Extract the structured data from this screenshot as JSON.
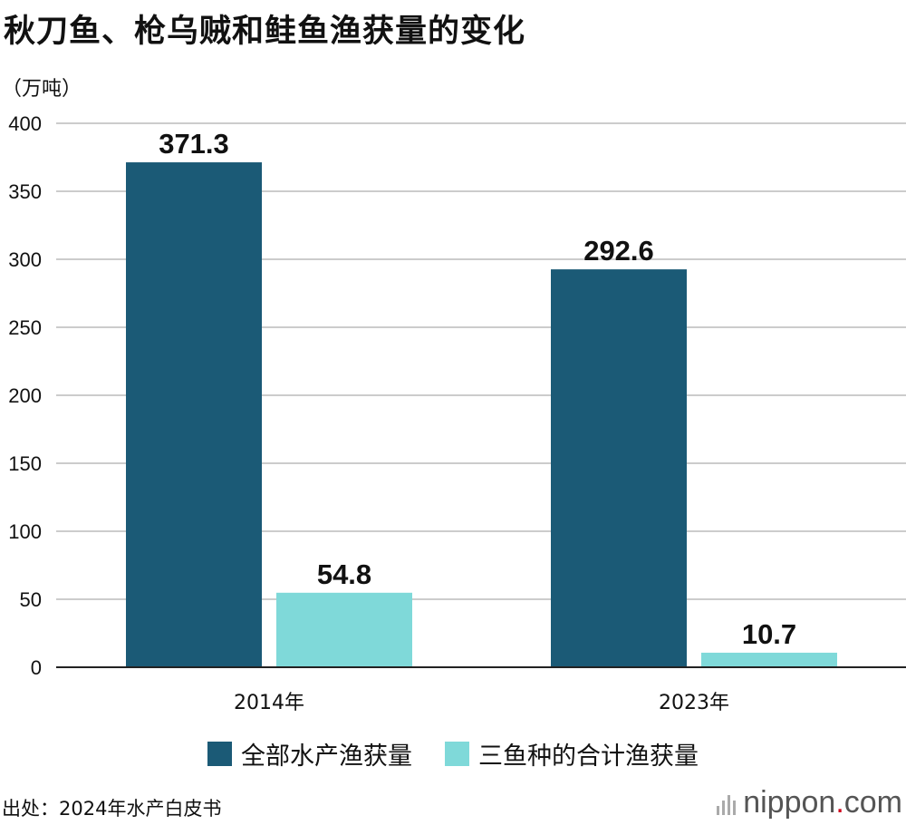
{
  "title": "秋刀鱼、枪乌贼和鲑鱼渔获量的变化",
  "unit_label": "（万吨）",
  "colors": {
    "series1": "#1b5a76",
    "series2": "#7fd9d9",
    "grid": "#cccccc",
    "axis": "#222222"
  },
  "chart_data": {
    "type": "bar",
    "categories": [
      "2014年",
      "2023年"
    ],
    "series": [
      {
        "name": "全部水产渔获量",
        "values": [
          371.3,
          292.6
        ]
      },
      {
        "name": "三鱼种的合计渔获量",
        "values": [
          54.8,
          10.7
        ]
      }
    ],
    "ylabel": "（万吨）",
    "ylim": [
      0,
      400
    ],
    "yticks": [
      "0",
      "50",
      "100",
      "150",
      "200",
      "250",
      "300",
      "350",
      "400"
    ],
    "data_labels": [
      "371.3",
      "54.8",
      "292.6",
      "10.7"
    ],
    "grid": true,
    "legend_position": "bottom"
  },
  "legend": [
    {
      "label": "全部水产渔获量"
    },
    {
      "label": "三鱼种的合计渔获量"
    }
  ],
  "source": "出处：2024年水产白皮书",
  "brand": {
    "name": "nippon",
    "dot": ".",
    "tld": "com"
  }
}
